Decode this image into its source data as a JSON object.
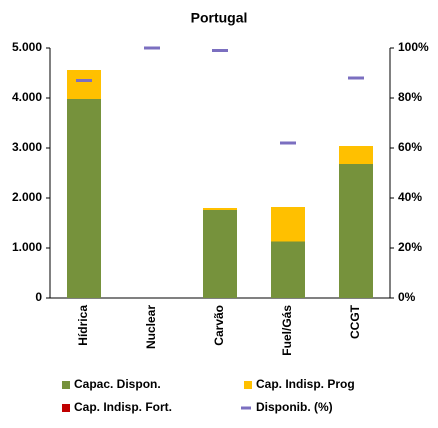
{
  "chart_data": {
    "type": "bar",
    "title": "Portugal",
    "categories": [
      "Hídrica",
      "Nuclear",
      "Carvão",
      "Fuel/Gás",
      "CCGT"
    ],
    "series": [
      {
        "name": "Capac. Dispon.",
        "color": "#76923c",
        "values": [
          3980,
          0,
          1760,
          1130,
          2680
        ]
      },
      {
        "name": "Cap. Indisp. Prog",
        "color": "#ffc000",
        "values": [
          580,
          0,
          40,
          690,
          360
        ]
      },
      {
        "name": "Cap. Indisp. Fort.",
        "color": "#c00000",
        "values": [
          0,
          0,
          0,
          0,
          0
        ]
      },
      {
        "name": "Disponib. (%)",
        "color": "#7b6fc0",
        "axis": "y2",
        "values": [
          87,
          100,
          99,
          62,
          88
        ]
      }
    ],
    "ylim": [
      0,
      5000
    ],
    "yticks": [
      0,
      {
        "value": 1000,
        "label": "1.000"
      },
      {
        "value": 2000,
        "label": "2.000"
      },
      {
        "value": 3000,
        "label": "3.000"
      },
      {
        "value": 4000,
        "label": "4.000"
      },
      {
        "value": 5000,
        "label": "5.000"
      }
    ],
    "y2lim": [
      0,
      100
    ],
    "y2ticks": [
      {
        "value": 0,
        "label": "0%"
      },
      {
        "value": 20,
        "label": "20%"
      },
      {
        "value": 40,
        "label": "40%"
      },
      {
        "value": 60,
        "label": "60%"
      },
      {
        "value": 80,
        "label": "80%"
      },
      {
        "value": 100,
        "label": "100%"
      }
    ],
    "stacked": true,
    "grid": false
  }
}
